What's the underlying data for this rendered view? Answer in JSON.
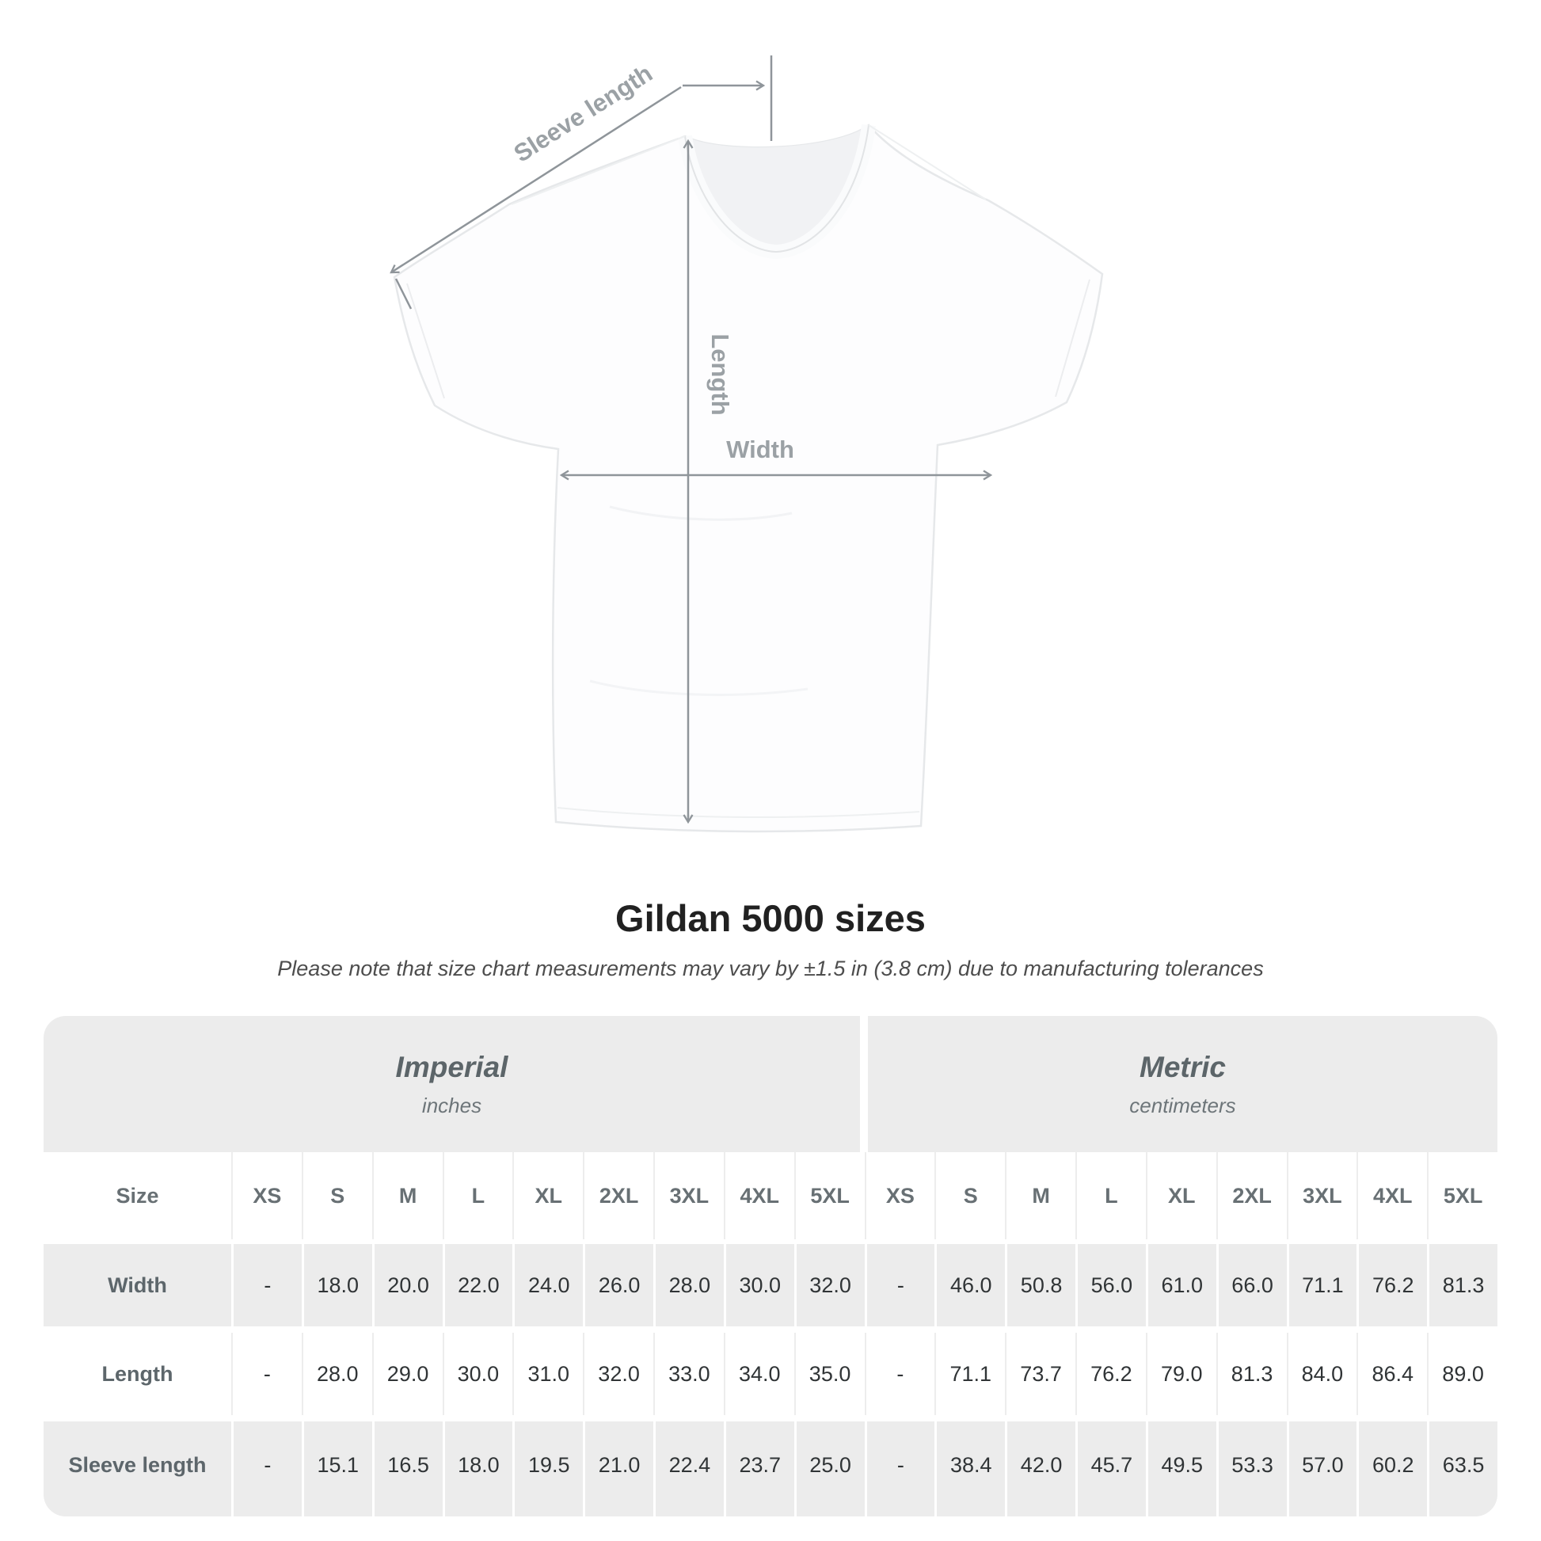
{
  "diagram": {
    "labels": {
      "sleeve_length": "Sleeve length",
      "length": "Length",
      "width": "Width"
    },
    "line_color": "#8f959a",
    "label_color": "#9ba1a5",
    "shirt_color": "#fdfdfe"
  },
  "title": "Gildan 5000 sizes",
  "subtitle": "Please note that size chart measurements may vary by ±1.5 in (3.8 cm) due to manufacturing tolerances",
  "table": {
    "band_bg": "#ececec",
    "size_header": "Size",
    "unit_groups": [
      {
        "label": "Imperial",
        "sublabel": "inches"
      },
      {
        "label": "Metric",
        "sublabel": "centimeters"
      }
    ],
    "columns": [
      "XS",
      "S",
      "M",
      "L",
      "XL",
      "2XL",
      "3XL",
      "4XL",
      "5XL",
      "XS",
      "S",
      "M",
      "L",
      "XL",
      "2XL",
      "3XL",
      "4XL",
      "5XL"
    ],
    "rows": [
      {
        "label": "Width",
        "values": [
          "-",
          "18.0",
          "20.0",
          "22.0",
          "24.0",
          "26.0",
          "28.0",
          "30.0",
          "32.0",
          "-",
          "46.0",
          "50.8",
          "56.0",
          "61.0",
          "66.0",
          "71.1",
          "76.2",
          "81.3"
        ]
      },
      {
        "label": "Length",
        "values": [
          "-",
          "28.0",
          "29.0",
          "30.0",
          "31.0",
          "32.0",
          "33.0",
          "34.0",
          "35.0",
          "-",
          "71.1",
          "73.7",
          "76.2",
          "79.0",
          "81.3",
          "84.0",
          "86.4",
          "89.0"
        ]
      },
      {
        "label": "Sleeve length",
        "values": [
          "-",
          "15.1",
          "16.5",
          "18.0",
          "19.5",
          "21.0",
          "22.4",
          "23.7",
          "25.0",
          "-",
          "38.4",
          "42.0",
          "45.7",
          "49.5",
          "53.3",
          "57.0",
          "60.2",
          "63.5"
        ]
      }
    ]
  },
  "chart_data": {
    "type": "table",
    "title": "Gildan 5000 sizes",
    "note": "Measurements may vary by ±1.5 in (3.8 cm) due to manufacturing tolerances",
    "sizes": [
      "XS",
      "S",
      "M",
      "L",
      "XL",
      "2XL",
      "3XL",
      "4XL",
      "5XL"
    ],
    "imperial_inches": {
      "Width": [
        null,
        18.0,
        20.0,
        22.0,
        24.0,
        26.0,
        28.0,
        30.0,
        32.0
      ],
      "Length": [
        null,
        28.0,
        29.0,
        30.0,
        31.0,
        32.0,
        33.0,
        34.0,
        35.0
      ],
      "Sleeve length": [
        null,
        15.1,
        16.5,
        18.0,
        19.5,
        21.0,
        22.4,
        23.7,
        25.0
      ]
    },
    "metric_centimeters": {
      "Width": [
        null,
        46.0,
        50.8,
        56.0,
        61.0,
        66.0,
        71.1,
        76.2,
        81.3
      ],
      "Length": [
        null,
        71.1,
        73.7,
        76.2,
        79.0,
        81.3,
        84.0,
        86.4,
        89.0
      ],
      "Sleeve length": [
        null,
        38.4,
        42.0,
        45.7,
        49.5,
        53.3,
        57.0,
        60.2,
        63.5
      ]
    }
  }
}
